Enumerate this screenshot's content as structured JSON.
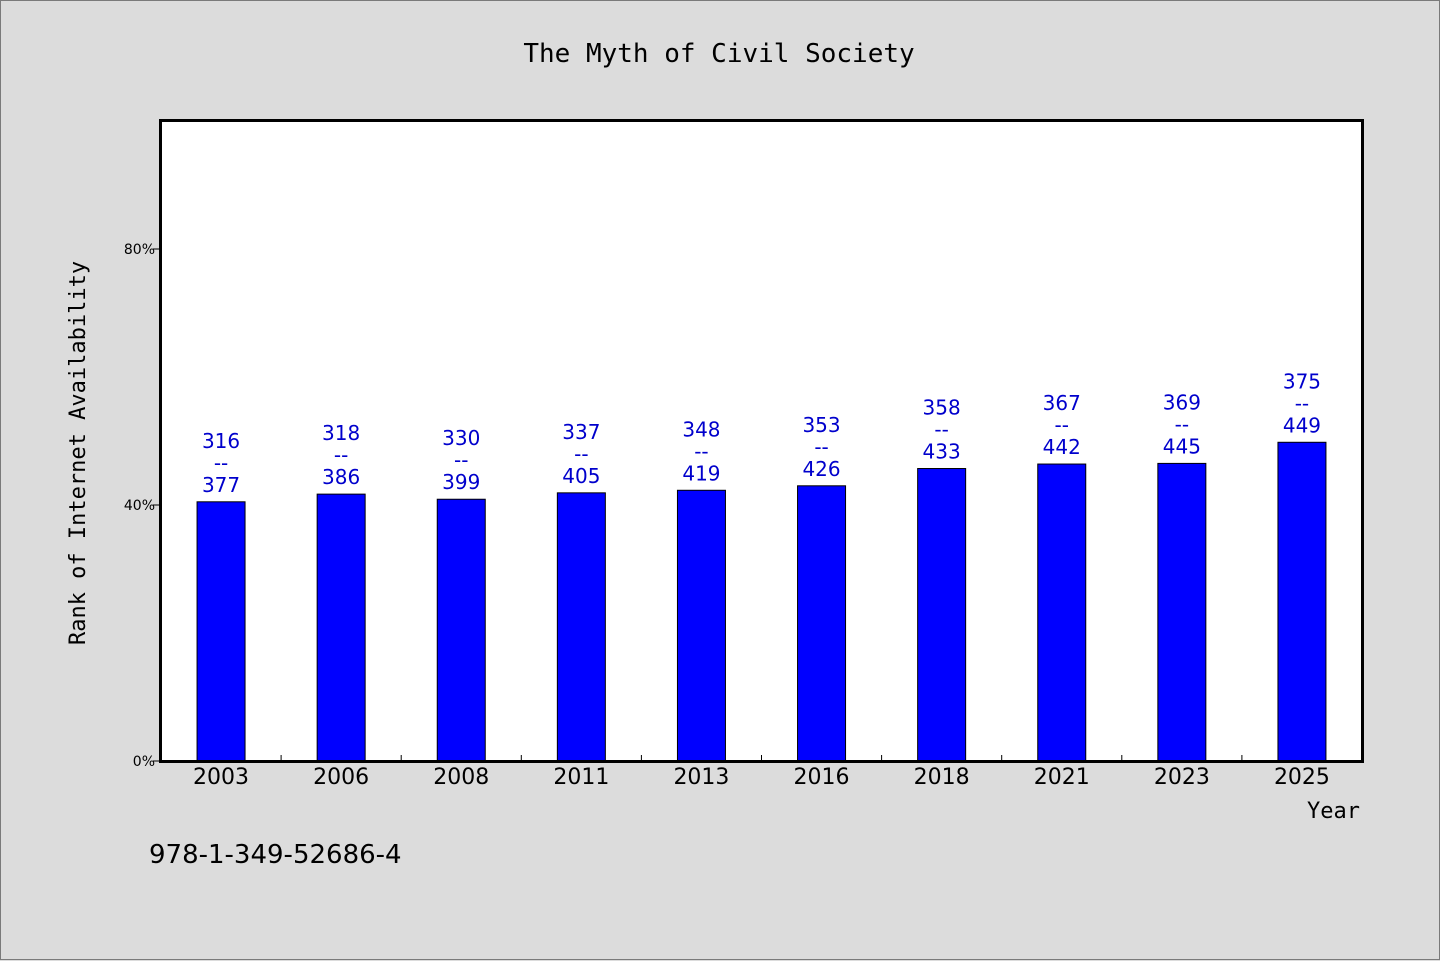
{
  "chart_data": {
    "type": "bar",
    "title": "The Myth of Civil Society",
    "xlabel": "Year",
    "ylabel": "Rank of Internet Availability",
    "categories": [
      "2003",
      "2006",
      "2008",
      "2011",
      "2013",
      "2016",
      "2018",
      "2021",
      "2023",
      "2025"
    ],
    "values": [
      40.5,
      41.7,
      40.9,
      41.9,
      42.3,
      43.0,
      45.7,
      46.4,
      46.5,
      49.8
    ],
    "data_labels": [
      [
        "316",
        "--",
        "377"
      ],
      [
        "318",
        "--",
        "386"
      ],
      [
        "330",
        "--",
        "399"
      ],
      [
        "337",
        "--",
        "405"
      ],
      [
        "348",
        "--",
        "419"
      ],
      [
        "353",
        "--",
        "426"
      ],
      [
        "358",
        "--",
        "433"
      ],
      [
        "367",
        "--",
        "442"
      ],
      [
        "369",
        "--",
        "445"
      ],
      [
        "375",
        "--",
        "449"
      ]
    ],
    "ylim": [
      0,
      100
    ],
    "yticks": [
      0,
      40,
      80
    ],
    "ytick_labels": [
      "0%",
      "40%",
      "80%"
    ],
    "bar_color": "#0000ff",
    "label_color": "#0000cc",
    "grid": false,
    "legend": "none"
  },
  "footer": {
    "isbn": "978-1-349-52686-4"
  }
}
